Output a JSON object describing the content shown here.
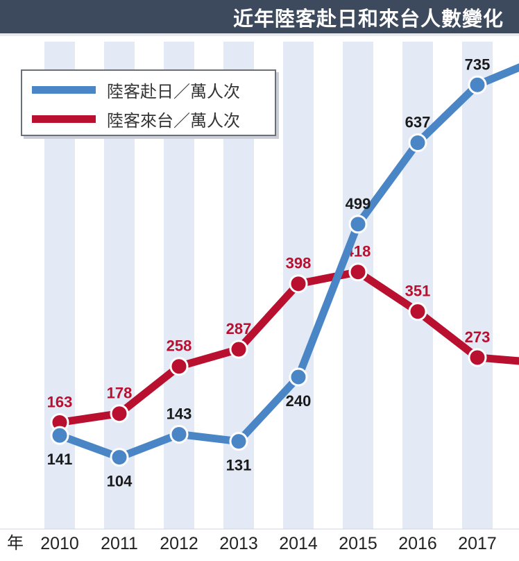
{
  "title": "近年陸客赴日和來台人數變化",
  "colors": {
    "blue": "#4a86c6",
    "red": "#b8102e",
    "band": "#e3eaf5",
    "title_bg": "#3d4a5e"
  },
  "chart_data": {
    "type": "line",
    "title": "近年陸客赴日和來台人數變化",
    "x_axis_unit": "年",
    "categories": [
      "2010",
      "2011",
      "2012",
      "2013",
      "2014",
      "2015",
      "2016",
      "2017"
    ],
    "series": [
      {
        "name": "陸客赴日／萬人次",
        "color": "#4a86c6",
        "values": [
          141,
          104,
          143,
          131,
          240,
          499,
          637,
          735
        ]
      },
      {
        "name": "陸客來台／萬人次",
        "color": "#b8102e",
        "values": [
          163,
          178,
          258,
          287,
          398,
          418,
          351,
          273
        ]
      }
    ],
    "legend": "top-left",
    "grid": false
  }
}
